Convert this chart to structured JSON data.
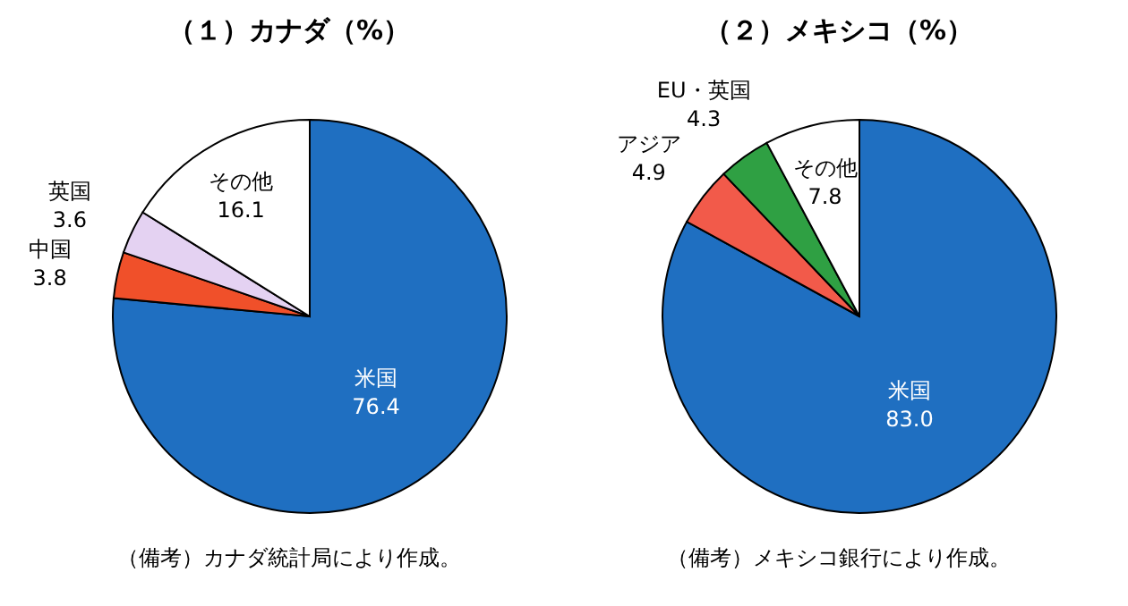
{
  "chart_data": [
    {
      "type": "pie",
      "title": "（１）カナダ（%）",
      "categories": [
        "米国",
        "中国",
        "英国",
        "その他"
      ],
      "values": [
        76.4,
        3.8,
        3.6,
        16.1
      ],
      "value_labels": [
        "76.4",
        "3.8",
        "3.6",
        "16.1"
      ],
      "colors": [
        "#1f6fc1",
        "#f0502a",
        "#e4d2f2",
        "#ffffff"
      ],
      "annotations": [
        "（備考）カナダ統計局により作成。"
      ]
    },
    {
      "type": "pie",
      "title": "（２）メキシコ（%）",
      "categories": [
        "米国",
        "アジア",
        "EU・英国",
        "その他"
      ],
      "values": [
        83.0,
        4.9,
        4.3,
        7.8
      ],
      "value_labels": [
        "83.0",
        "4.9",
        "4.3",
        "7.8"
      ],
      "colors": [
        "#1f6fc1",
        "#f25a4a",
        "#2fa043",
        "#ffffff"
      ],
      "annotations": [
        "（備考）メキシコ銀行により作成。"
      ]
    }
  ]
}
